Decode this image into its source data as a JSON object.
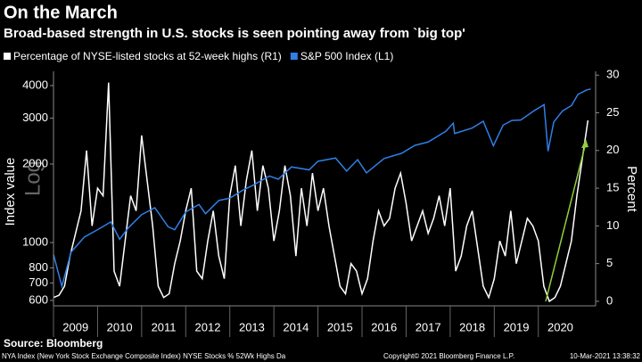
{
  "chart_data": {
    "type": "line",
    "title": "On the March",
    "subtitle": "Broad-based strength in U.S. stocks is seen pointing away from `big top'",
    "ylabel": "Index value",
    "y2label": "Percent",
    "scale_note": "Log",
    "log_y": true,
    "source": "Source: Bloomberg",
    "footer_left": "NYA Index (New York Stock Exchange Composite Index) NYSE Stocks % 52Wk Highs  Da",
    "footer_center": "Copyright© 2021 Bloomberg Finance L.P.",
    "footer_right": "10-Mar-2021 13:38:32",
    "xlim": [
      2009.0,
      2021.3
    ],
    "xticks": [
      2009,
      2010,
      2011,
      2012,
      2013,
      2014,
      2015,
      2016,
      2017,
      2018,
      2019,
      2020
    ],
    "ylim": [
      572,
      4536
    ],
    "yticks": [
      600,
      700,
      800,
      1000,
      2000,
      3000,
      4000
    ],
    "y2lim": [
      -0.6,
      30.5
    ],
    "y2ticks": [
      0,
      5,
      10,
      15,
      20,
      25,
      30
    ],
    "series": [
      {
        "name": "Percentage of NYSE-listed stocks at 52-week highs (R1)",
        "color": "#ffffff",
        "axis": "y2",
        "x": [
          2009,
          2009.125,
          2009.25,
          2009.375,
          2009.5,
          2009.625,
          2009.75,
          2009.875,
          2010,
          2010.125,
          2010.25,
          2010.375,
          2010.5,
          2010.625,
          2010.75,
          2010.875,
          2011,
          2011.125,
          2011.25,
          2011.375,
          2011.5,
          2011.625,
          2011.75,
          2011.875,
          2012,
          2012.125,
          2012.25,
          2012.375,
          2012.5,
          2012.625,
          2012.75,
          2012.875,
          2013,
          2013.125,
          2013.25,
          2013.375,
          2013.5,
          2013.625,
          2013.75,
          2013.875,
          2014,
          2014.125,
          2014.25,
          2014.375,
          2014.5,
          2014.625,
          2014.75,
          2014.875,
          2015,
          2015.125,
          2015.25,
          2015.375,
          2015.5,
          2015.625,
          2015.75,
          2015.875,
          2016,
          2016.125,
          2016.25,
          2016.375,
          2016.5,
          2016.625,
          2016.75,
          2016.875,
          2017,
          2017.125,
          2017.25,
          2017.375,
          2017.5,
          2017.625,
          2017.75,
          2017.875,
          2018,
          2018.125,
          2018.25,
          2018.375,
          2018.5,
          2018.625,
          2018.75,
          2018.875,
          2019,
          2019.125,
          2019.25,
          2019.375,
          2019.5,
          2019.625,
          2019.75,
          2019.875,
          2020,
          2020.125,
          2020.25,
          2020.375,
          2020.5,
          2020.625,
          2020.75,
          2020.875,
          2021,
          2021.125
        ],
        "values": [
          0.5,
          0.8,
          2,
          6,
          9,
          12,
          20,
          10,
          15,
          14,
          29,
          4,
          2,
          8,
          14,
          12,
          22,
          16,
          10,
          2,
          0.5,
          1,
          5,
          8,
          12,
          15,
          4,
          3,
          8,
          12,
          6,
          3,
          14,
          18,
          10,
          16,
          20,
          12,
          18,
          15,
          8,
          12,
          18,
          14,
          6,
          15,
          10,
          17,
          12,
          15,
          10,
          6,
          2,
          1,
          5,
          4,
          1,
          3,
          8,
          12,
          10,
          11,
          15,
          17,
          13,
          8,
          10,
          12,
          9,
          11,
          14,
          10,
          15,
          4,
          6,
          10,
          12,
          7,
          2,
          0.5,
          3,
          8,
          6,
          12,
          5,
          8,
          11,
          10,
          8,
          2,
          0,
          0.5,
          2,
          5,
          8,
          14,
          19,
          24
        ]
      },
      {
        "name": "S&P 500 Index (L1)",
        "color": "#2f7fe6",
        "axis": "y",
        "x": [
          2009.0,
          2009.19,
          2009.4,
          2009.7,
          2010.0,
          2010.3,
          2010.5,
          2010.7,
          2011.0,
          2011.3,
          2011.6,
          2011.75,
          2012.0,
          2012.3,
          2012.45,
          2012.75,
          2013.0,
          2013.3,
          2013.5,
          2013.9,
          2014.1,
          2014.4,
          2014.8,
          2015.0,
          2015.4,
          2015.65,
          2015.9,
          2016.1,
          2016.5,
          2016.9,
          2017.2,
          2017.5,
          2017.9,
          2018.07,
          2018.1,
          2018.5,
          2018.75,
          2018.98,
          2019.2,
          2019.4,
          2019.6,
          2019.9,
          2020.13,
          2020.22,
          2020.35,
          2020.55,
          2020.75,
          2020.9,
          2021.1,
          2021.19
        ],
        "values": [
          900,
          680,
          920,
          1050,
          1120,
          1200,
          1030,
          1140,
          1280,
          1360,
          1150,
          1120,
          1310,
          1400,
          1290,
          1450,
          1480,
          1590,
          1650,
          1800,
          1750,
          1950,
          1900,
          2050,
          2110,
          1880,
          2080,
          1850,
          2100,
          2200,
          2360,
          2430,
          2670,
          2870,
          2620,
          2750,
          2920,
          2350,
          2820,
          2940,
          2950,
          3200,
          3380,
          2240,
          2900,
          3200,
          3350,
          3700,
          3850,
          3880
        ]
      }
    ]
  }
}
